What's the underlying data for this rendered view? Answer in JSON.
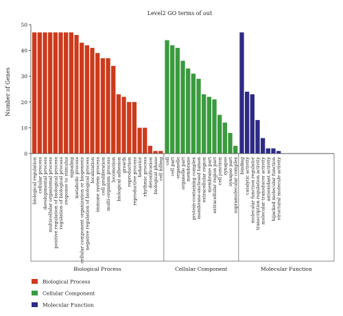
{
  "chart_data": {
    "type": "bar",
    "title": "Level2 GO terms of out",
    "ylabel": "Number of Genes",
    "ylim": [
      0,
      50
    ],
    "yticks": [
      0,
      10,
      20,
      30,
      40,
      50
    ],
    "grid": false,
    "legend_position": "bottom-left",
    "groups": [
      {
        "name": "Biological Process",
        "color": "#cc3a1c",
        "categories": [
          "biological regulation",
          "cellular process",
          "developmental process",
          "multicellular organismal process",
          "positive regulation of biological process",
          "regulation of biological process",
          "response to stimulus",
          "signaling",
          "metabolic process",
          "cellular component organization or biogenesis",
          "negative regulation of biological process",
          "localization",
          "immune system process",
          "cell proliferation",
          "multi-organism process",
          "locomotion",
          "biological adhesion",
          "growth",
          "reproduction",
          "reproductive process",
          "behavior",
          "rhythmic process",
          "detoxification",
          "biological phase",
          "cell killing"
        ],
        "values": [
          47,
          47,
          47,
          47,
          47,
          47,
          47,
          47,
          46,
          43,
          42,
          41,
          39,
          37,
          37,
          34,
          23,
          22,
          20,
          20,
          10,
          10,
          3,
          1,
          1
        ]
      },
      {
        "name": "Cellular Component",
        "color": "#3a9a3e",
        "categories": [
          "cell",
          "cell part",
          "organelle",
          "organelle part",
          "membrane",
          "protein-containing complex",
          "membrane-enclosed lumen",
          "extracellular region",
          "membrane part",
          "extracellular region part",
          "cell junction",
          "synapse",
          "synapse part",
          "supramolecular complex"
        ],
        "values": [
          44,
          42,
          41,
          36,
          33,
          31,
          29,
          23,
          22,
          21,
          15,
          12,
          8,
          3
        ]
      },
      {
        "name": "Molecular Function",
        "color": "#2e2a86",
        "categories": [
          "binding",
          "catalytic activity",
          "molecular function regulator",
          "transcription regulation activity",
          "molecular transducer activity",
          "antioxidant activity",
          "hijacked molecular function",
          "structural molecule activity"
        ],
        "values": [
          47,
          24,
          23,
          13,
          6,
          2,
          2,
          1
        ]
      }
    ]
  }
}
